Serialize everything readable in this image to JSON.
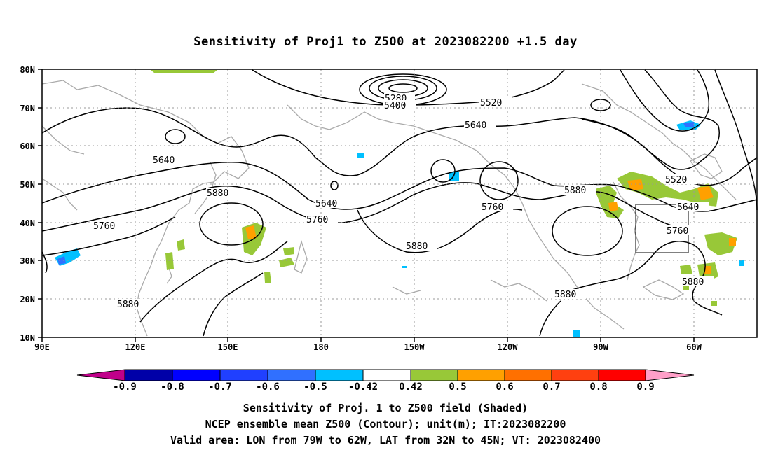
{
  "title": "Sensitivity of Proj1 to Z500 at 2023082200 +1.5 day",
  "lat_labels": [
    "80N",
    "70N",
    "60N",
    "50N",
    "40N",
    "30N",
    "20N",
    "10N"
  ],
  "lon_labels": [
    "90E",
    "120E",
    "150E",
    "180",
    "150W",
    "120W",
    "90W",
    "60W"
  ],
  "contour_labels": [
    {
      "text": "5280"
    },
    {
      "text": "5400"
    },
    {
      "text": "5520"
    },
    {
      "text": "5640"
    },
    {
      "text": "5640"
    },
    {
      "text": "5880"
    },
    {
      "text": "5640"
    },
    {
      "text": "5760"
    },
    {
      "text": "5880"
    },
    {
      "text": "5760"
    },
    {
      "text": "5880"
    },
    {
      "text": "5520"
    },
    {
      "text": "5640"
    },
    {
      "text": "5760"
    },
    {
      "text": "5880"
    },
    {
      "text": "5760"
    },
    {
      "text": "5880"
    },
    {
      "text": "5880"
    }
  ],
  "colorbar": {
    "labels": [
      "-0.9",
      "-0.8",
      "-0.7",
      "-0.6",
      "-0.5",
      "-0.42",
      "0.42",
      "0.5",
      "0.6",
      "0.7",
      "0.8",
      "0.9"
    ],
    "colors": [
      "#0000a8",
      "#0000ff",
      "#2040ff",
      "#3070ff",
      "#00c0ff",
      "#ffffff",
      "#98c838",
      "#ffa000",
      "#ff7000",
      "#ff4010",
      "#ff0000"
    ],
    "low_color": "#c0008a",
    "high_color": "#ff9fc8"
  },
  "captions": {
    "line1": "Sensitivity of Proj. 1 to Z500 field (Shaded)",
    "line2": "NCEP ensemble mean Z500 (Contour); unit(m); IT:2023082200",
    "line3": "Valid area: LON from 79W to 62W, LAT from 32N to 45N; VT: 2023082400"
  },
  "colors": {
    "coastline": "#aaaaaa",
    "grid": "#999999",
    "contour": "#000000"
  }
}
